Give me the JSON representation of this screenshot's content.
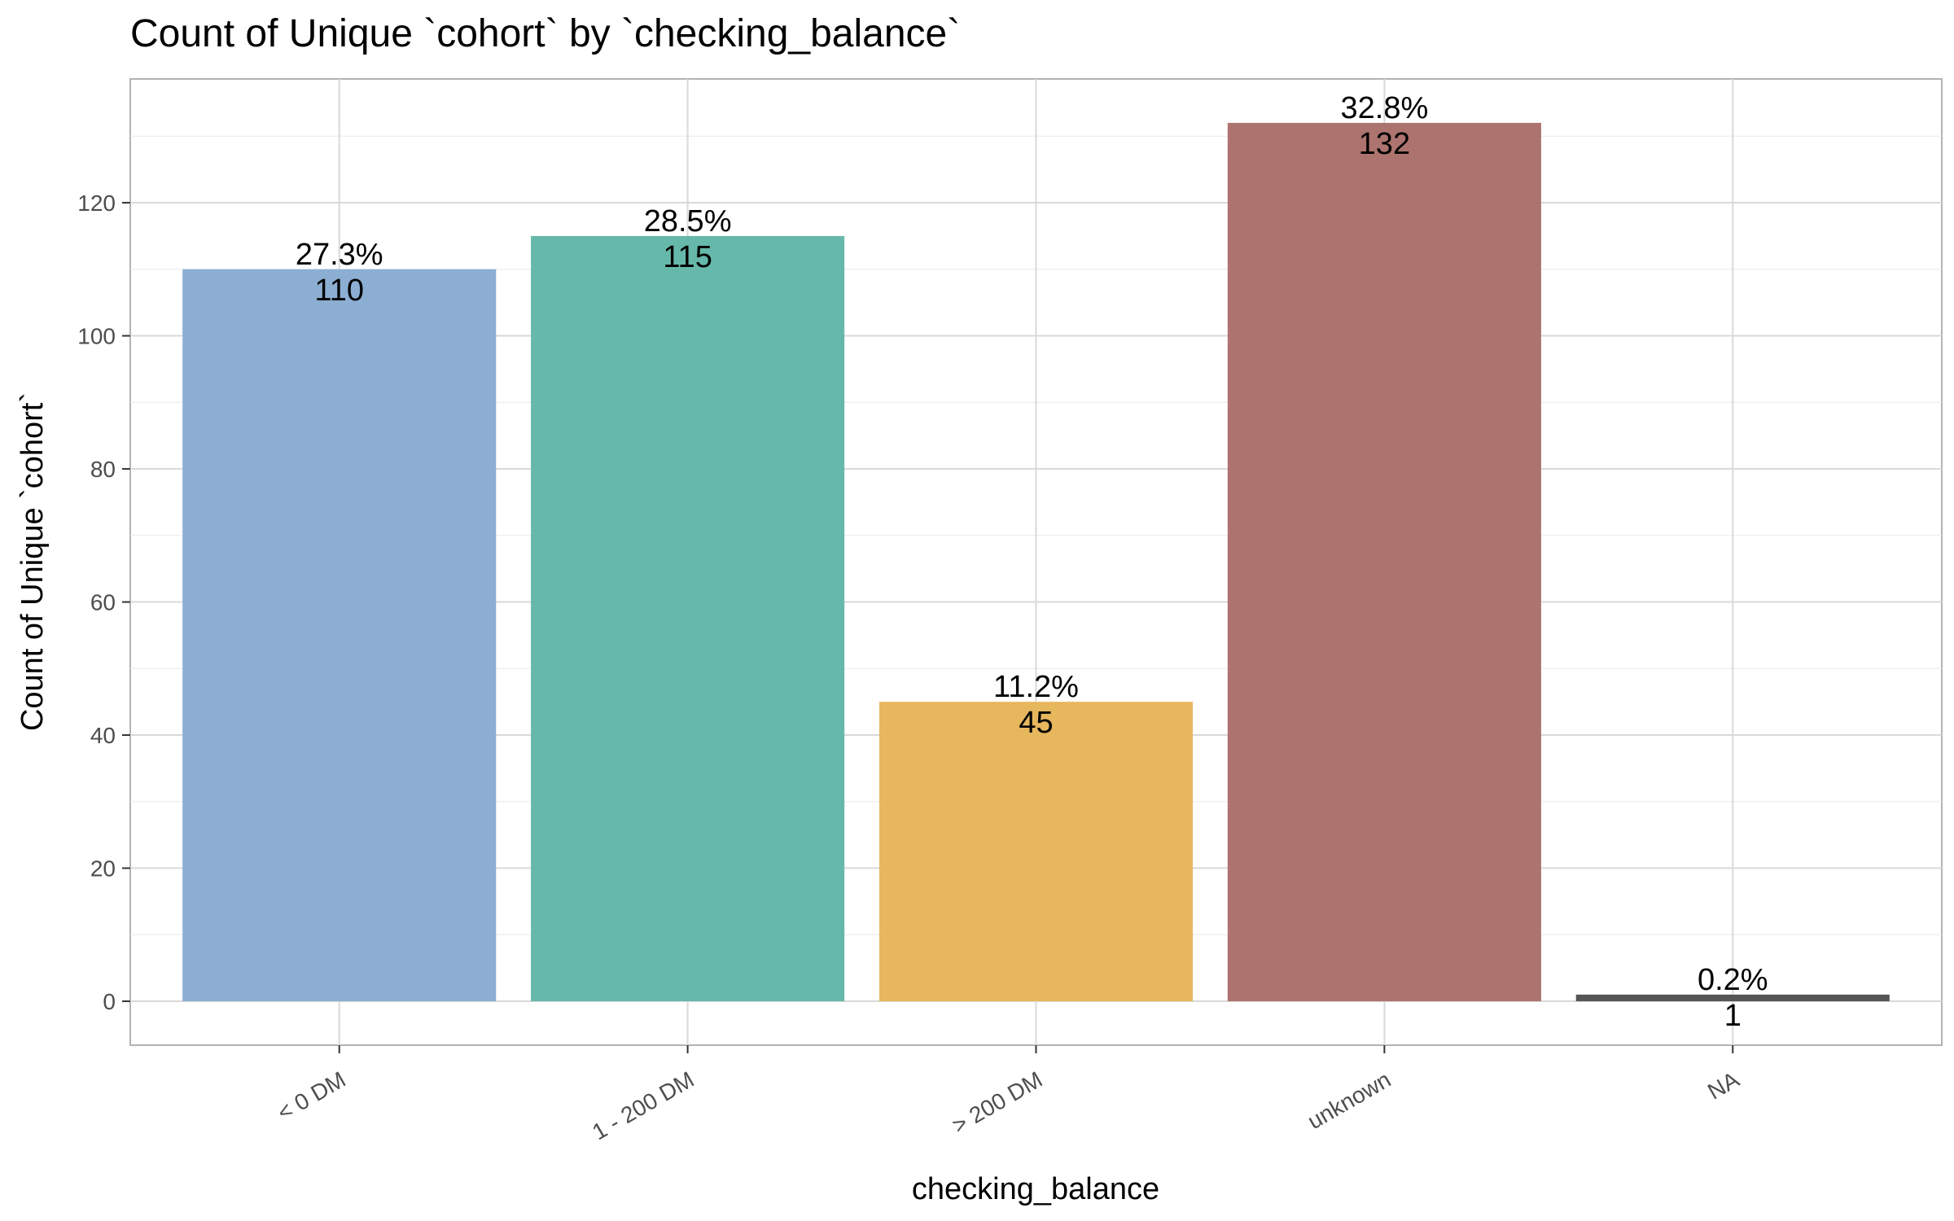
{
  "chart_data": {
    "type": "bar",
    "title": "Count of Unique `cohort` by `checking_balance`",
    "xlabel": "checking_balance",
    "ylabel": "Count of Unique `cohort`",
    "categories": [
      "< 0 DM",
      "1 - 200 DM",
      "> 200 DM",
      "unknown",
      "NA"
    ],
    "values": [
      110,
      115,
      45,
      132,
      1
    ],
    "percent_labels": [
      "27.3%",
      "28.5%",
      "11.2%",
      "32.8%",
      "0.2%"
    ],
    "count_labels": [
      "110",
      "115",
      "45",
      "132",
      "1"
    ],
    "colors": [
      "#8caed3",
      "#66b9aa",
      "#e7b75e",
      "#ad746f",
      "#555555"
    ],
    "ylim": [
      -6.6,
      138.6
    ],
    "yticks": [
      0,
      20,
      40,
      60,
      80,
      100,
      120
    ],
    "grid": true,
    "legend": "none"
  }
}
